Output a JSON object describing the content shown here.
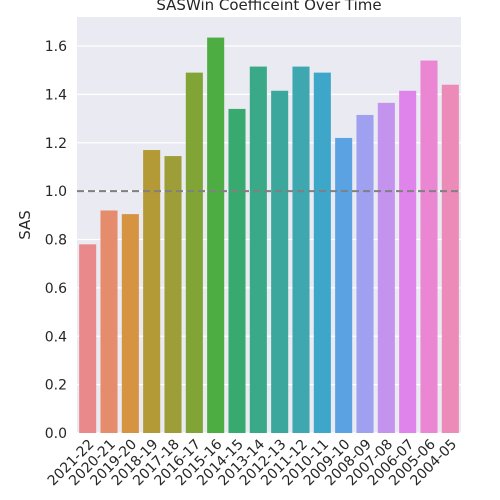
{
  "chart_data": {
    "type": "bar",
    "title": "SASWin Coefficeint Over Time",
    "xlabel": "",
    "ylabel": "SAS",
    "ylim": [
      0,
      1.72
    ],
    "yticks": [
      "0.0",
      "0.2",
      "0.4",
      "0.6",
      "0.8",
      "1.0",
      "1.2",
      "1.4",
      "1.6"
    ],
    "grid": true,
    "reference_line": {
      "value": 1.0,
      "style": "dashed",
      "color": "#808080"
    },
    "categories": [
      "2021-22",
      "2020-21",
      "2019-20",
      "2018-19",
      "2017-18",
      "2016-17",
      "2015-16",
      "2014-15",
      "2013-14",
      "2012-13",
      "2011-12",
      "2010-11",
      "2009-10",
      "2008-09",
      "2007-08",
      "2006-07",
      "2005-06",
      "2004-05"
    ],
    "values": [
      0.78,
      0.92,
      0.905,
      1.17,
      1.145,
      1.49,
      1.635,
      1.34,
      1.515,
      1.415,
      1.515,
      1.49,
      1.22,
      1.315,
      1.365,
      1.415,
      1.54,
      1.44
    ],
    "colors": [
      "#e9898b",
      "#e58c6d",
      "#d69342",
      "#b39a36",
      "#9d9e38",
      "#80a536",
      "#4ead42",
      "#39aa6f",
      "#3aa987",
      "#3ca79d",
      "#3ea7b0",
      "#3ea7c9",
      "#5ba2e3",
      "#9fa0ef",
      "#c493ed",
      "#df84eb",
      "#ea86d2",
      "#ec8ab8"
    ]
  }
}
